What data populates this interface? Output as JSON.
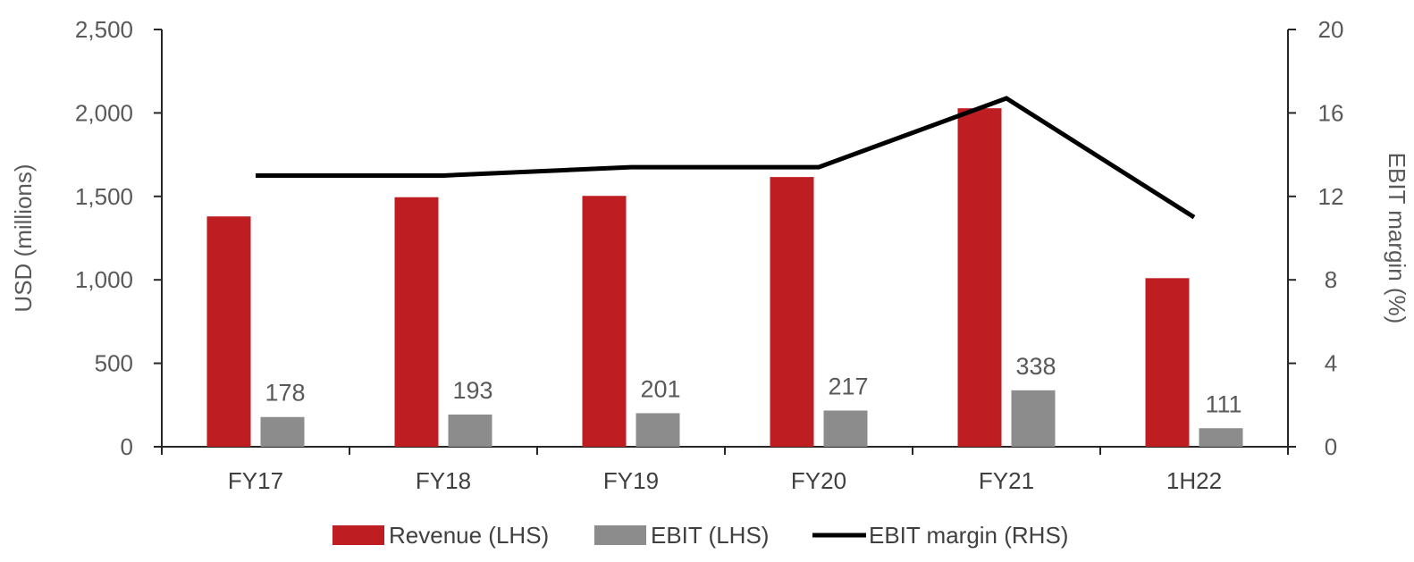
{
  "chart_data": {
    "type": "bar",
    "categories": [
      "FY17",
      "FY18",
      "FY19",
      "FY20",
      "FY21",
      "1H22"
    ],
    "series": [
      {
        "name": "Revenue (LHS)",
        "kind": "bar",
        "axis": "left",
        "color": "#be1e22",
        "values": [
          1380,
          1495,
          1503,
          1616,
          2028,
          1010
        ]
      },
      {
        "name": "EBIT (LHS)",
        "kind": "bar",
        "axis": "left",
        "color": "#8c8c8c",
        "values": [
          178,
          193,
          201,
          217,
          338,
          111
        ]
      },
      {
        "name": "EBIT margin (RHS)",
        "kind": "line",
        "axis": "right",
        "color": "#000000",
        "values": [
          13.0,
          13.0,
          13.4,
          13.4,
          16.7,
          11.0
        ]
      }
    ],
    "ylabel": "USD (millions)",
    "ylabel_right": "EBIT margin (%)",
    "ylim": [
      0,
      2500
    ],
    "ylim_right": [
      0,
      20
    ],
    "yticks": [
      "0",
      "500",
      "1,000",
      "1,500",
      "2,000",
      "2,500"
    ],
    "yticks_right": [
      "0",
      "4",
      "8",
      "12",
      "16",
      "20"
    ],
    "data_labels_series": "EBIT (LHS)",
    "legend_position": "bottom"
  }
}
